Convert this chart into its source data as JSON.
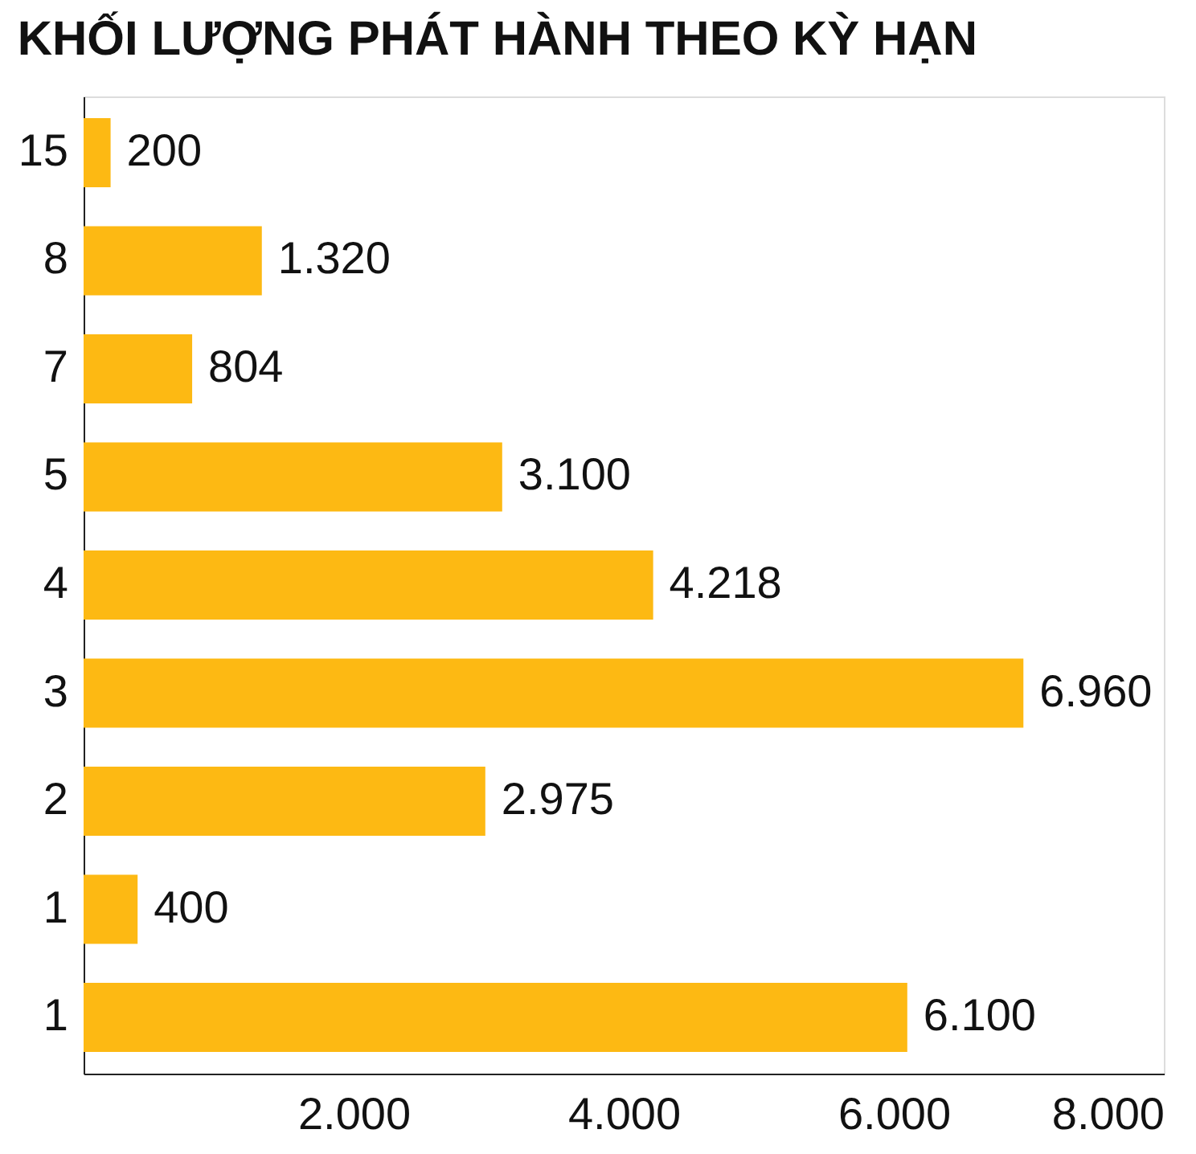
{
  "chart_data": {
    "type": "bar",
    "orientation": "horizontal",
    "title": "KHỐI LƯỢNG PHÁT HÀNH THEO KỲ HẠN",
    "categories": [
      "15",
      "8",
      "7",
      "5",
      "4",
      "3",
      "2",
      "1",
      "1"
    ],
    "values": [
      200,
      1320,
      804,
      3100,
      4218,
      6960,
      2975,
      400,
      6100
    ],
    "value_labels": [
      "200",
      "1.320",
      "804",
      "3.100",
      "4.218",
      "6.960",
      "2.975",
      "400",
      "6.100"
    ],
    "color": "#fdb913",
    "xlim": [
      0,
      8000
    ],
    "xticks": [
      {
        "value": 2000,
        "label": "2.000"
      },
      {
        "value": 4000,
        "label": "4.000"
      },
      {
        "value": 6000,
        "label": "6.000"
      },
      {
        "value": 8000,
        "label": "8.000"
      }
    ],
    "grid": false
  }
}
